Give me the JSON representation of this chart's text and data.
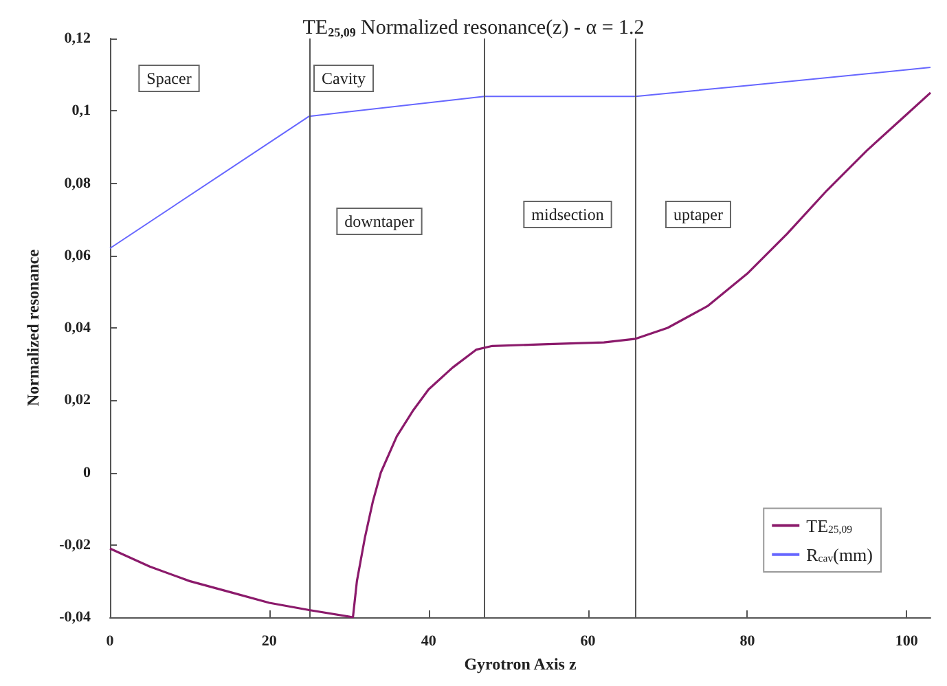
{
  "chart_data": {
    "type": "line",
    "title": "TE$_{25,09}$ Normalized resonance(z) - α = 1.2",
    "xlabel": "Gyrotron Axis z",
    "ylabel": "Normalized resonance",
    "xlim": [
      0,
      103
    ],
    "xticks": [
      0,
      20,
      40,
      60,
      80,
      100
    ],
    "ylim": [
      -0.04,
      0.12
    ],
    "yticks": [
      {
        "value": -0.04,
        "label": "-0,04"
      },
      {
        "value": -0.02,
        "label": "-0,02"
      },
      {
        "value": 0,
        "label": "0"
      },
      {
        "value": 0.02,
        "label": "0,02"
      },
      {
        "value": 0.04,
        "label": "0,04"
      },
      {
        "value": 0.06,
        "label": "0,06"
      },
      {
        "value": 0.08,
        "label": "0,08"
      },
      {
        "value": 0.1,
        "label": "0,1"
      },
      {
        "value": 0.12,
        "label": "0,12"
      }
    ],
    "grid": false,
    "legend": "bottom right",
    "marker": "none",
    "line_style": "solid",
    "series": [
      {
        "name": "TE$_{25,09}$",
        "color": "#8b1a6b",
        "x": [
          0,
          5,
          10,
          15,
          20,
          25,
          30.5,
          31,
          32,
          33,
          34,
          36,
          38,
          40,
          43,
          46,
          48,
          55,
          62,
          66,
          70,
          75,
          80,
          85,
          90,
          95,
          100,
          103
        ],
        "values": [
          -0.021,
          -0.026,
          -0.03,
          -0.033,
          -0.036,
          -0.038,
          -0.04,
          -0.03,
          -0.018,
          -0.008,
          0,
          0.01,
          0.017,
          0.023,
          0.029,
          0.034,
          0.035,
          0.0355,
          0.036,
          0.037,
          0.04,
          0.046,
          0.055,
          0.066,
          0.078,
          0.089,
          0.099,
          0.105
        ]
      },
      {
        "name": "R$_{cav}$(mm)",
        "color": "#6666ff",
        "x": [
          0,
          25,
          47,
          66,
          80,
          103
        ],
        "values": [
          0.062,
          0.0985,
          0.104,
          0.104,
          0.107,
          0.112
        ]
      }
    ],
    "ref_lines": [
      {
        "axis": "x",
        "value": 25,
        "color": "#555555"
      },
      {
        "axis": "x",
        "value": 47,
        "color": "#555555"
      },
      {
        "axis": "x",
        "value": 66,
        "color": "#555555"
      }
    ],
    "annotations": [
      "Spacer",
      "Cavity",
      "downtaper",
      "midsection",
      "uptaper"
    ]
  }
}
